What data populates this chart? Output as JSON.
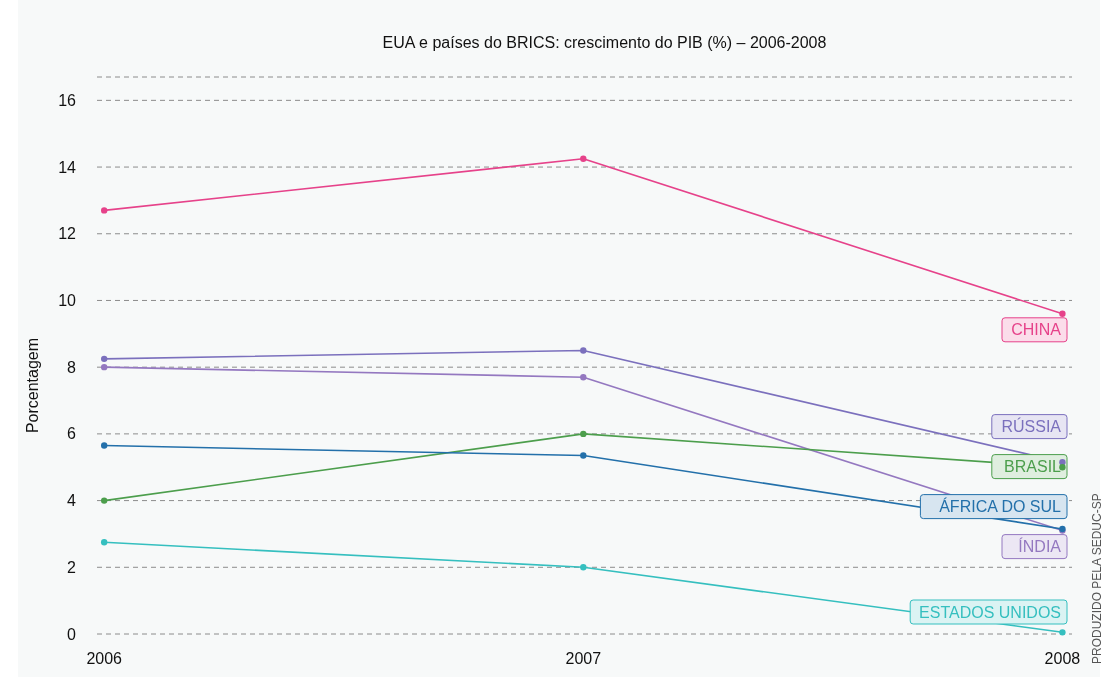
{
  "chart_data": {
    "type": "line",
    "title": "EUA e países do BRICS: crescimento do PIB (%) – 2006-2008",
    "ylabel": "Porcentagem",
    "x": [
      2006,
      2007,
      2008
    ],
    "xlim": [
      2005.985,
      2008.02
    ],
    "xticks": [
      2006,
      2007,
      2008
    ],
    "ylim": [
      0,
      16.7
    ],
    "yticks": [
      0,
      2,
      4,
      6,
      8,
      10,
      12,
      14,
      16,
      {
        "value": 16.7,
        "label": null
      }
    ],
    "grid": "y",
    "marker": "circle",
    "series": [
      {
        "name": "CHINA",
        "color": "#e6428a",
        "values": [
          12.7,
          14.25,
          9.6
        ]
      },
      {
        "name": "RÚSSIA",
        "color": "#7b70bd",
        "values": [
          8.25,
          8.5,
          5.15
        ]
      },
      {
        "name": "ÍNDIA",
        "color": "#9478c0",
        "values": [
          8.0,
          7.7,
          3.1
        ]
      },
      {
        "name": "BRASIL",
        "color": "#4c9e4c",
        "values": [
          4.0,
          6.0,
          5.0
        ]
      },
      {
        "name": "ÁFRICA DO SUL",
        "color": "#2370aa",
        "values": [
          5.65,
          5.35,
          3.15
        ]
      },
      {
        "name": "ESTADOS UNIDOS",
        "color": "#35bfbf",
        "values": [
          2.75,
          2.0,
          0.05
        ]
      }
    ],
    "annotations": [
      "PRODUZIDO PELA SEDUC-SP"
    ]
  }
}
